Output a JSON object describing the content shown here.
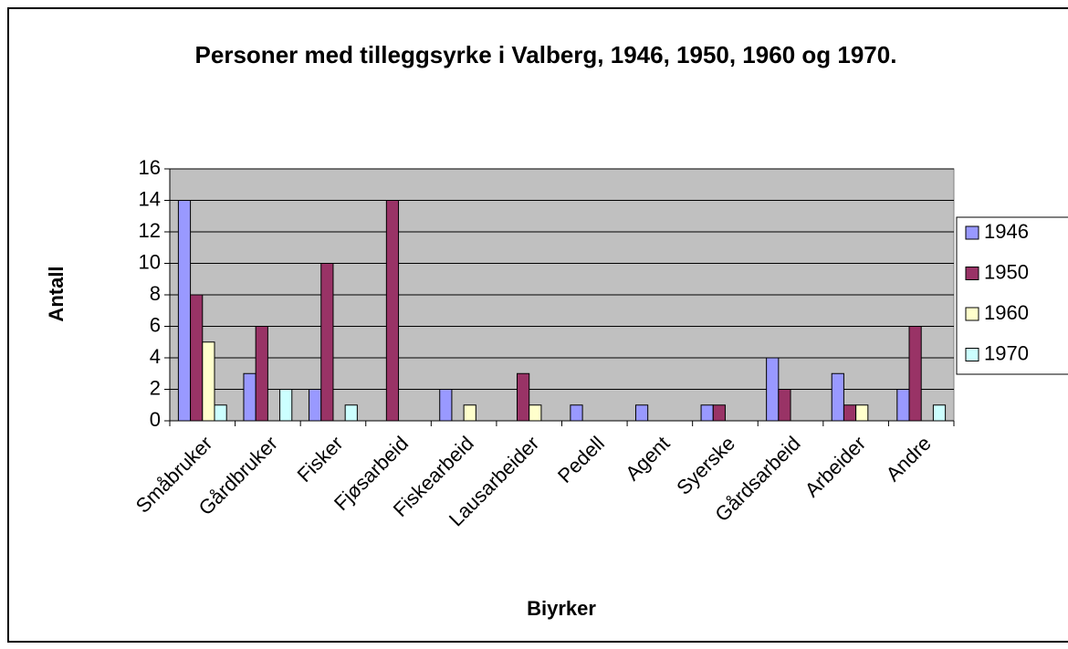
{
  "chart_data": {
    "type": "bar",
    "title": "Personer med tilleggsyrke i Valberg, 1946, 1950, 1960 og 1970.",
    "x_label": "Biyrker",
    "y_label": "Antall",
    "categories": [
      "Småbruker",
      "Gårdbruker",
      "Fisker",
      "Fjøsarbeid",
      "Fiskearbeid",
      "Lausarbeider",
      "Pedell",
      "Agent",
      "Syerske",
      "Gårdsarbeid",
      "Arbeider",
      "Andre"
    ],
    "series": [
      {
        "name": "1946",
        "color": "#9999ff",
        "values": [
          14,
          3,
          2,
          0,
          2,
          0,
          1,
          1,
          1,
          4,
          3,
          2
        ]
      },
      {
        "name": "1950",
        "color": "#993366",
        "values": [
          8,
          6,
          10,
          14,
          0,
          3,
          0,
          0,
          1,
          2,
          1,
          6
        ]
      },
      {
        "name": "1960",
        "color": "#ffffcc",
        "values": [
          5,
          0,
          0,
          0,
          1,
          1,
          0,
          0,
          0,
          0,
          1,
          0
        ]
      },
      {
        "name": "1970",
        "color": "#ccffff",
        "values": [
          1,
          2,
          1,
          0,
          0,
          0,
          0,
          0,
          0,
          0,
          0,
          1
        ]
      }
    ],
    "ylim": [
      0,
      16
    ],
    "yticks": [
      0,
      2,
      4,
      6,
      8,
      10,
      12,
      14,
      16
    ],
    "grid": true,
    "legend": "right",
    "plot_background": "#c0c0c0"
  }
}
